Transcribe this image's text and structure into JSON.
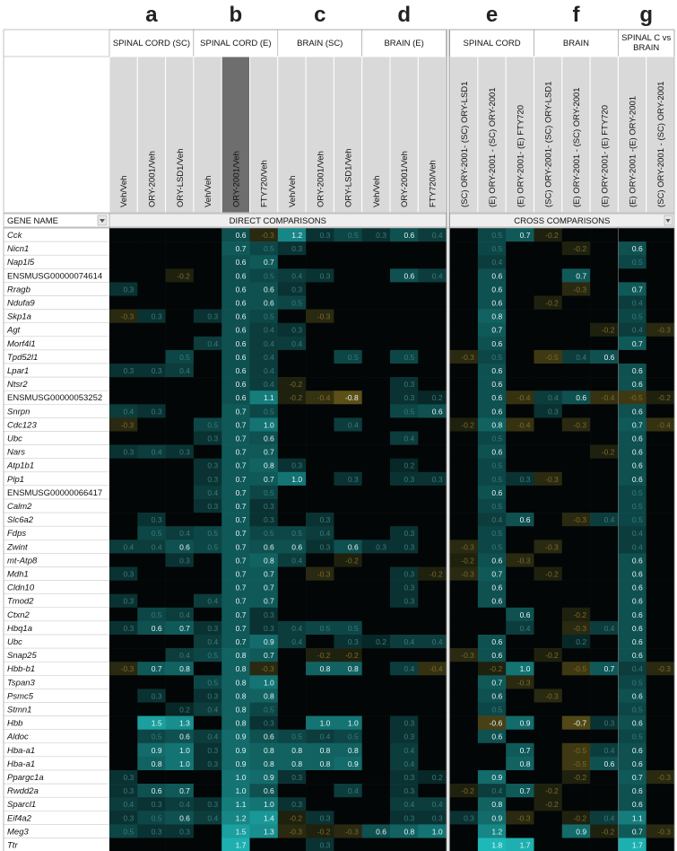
{
  "chart_data": {
    "type": "heatmap",
    "panel_letters": [
      "a",
      "b",
      "c",
      "d",
      "e",
      "f",
      "g"
    ],
    "groups": [
      {
        "label": "SPINAL CORD (SC)",
        "columns": [
          "Veh/Veh",
          "ORY-2001/Veh",
          "ORY-LSD1/Veh"
        ]
      },
      {
        "label": "SPINAL CORD (E)",
        "columns": [
          "Veh/Veh",
          "ORY-2001/Veh",
          "FTY720/Veh"
        ]
      },
      {
        "label": "BRAIN (SC)",
        "columns": [
          "Veh/Veh",
          "ORY-2001/Veh",
          "ORY-LSD1/Veh"
        ]
      },
      {
        "label": "BRAIN (E)",
        "columns": [
          "Veh/Veh",
          "ORY-2001/Veh",
          "FTY720/Veh"
        ]
      },
      {
        "label": "SPINAL CORD",
        "columns": [
          "(SC) ORY-2001- (SC) ORY-LSD1",
          "(E) ORY-2001 - (SC) ORY-2001",
          "(E) ORY-2001- (E) FTY720"
        ]
      },
      {
        "label": "BRAIN",
        "columns": [
          "(SC) ORY-2001- (SC) ORY-LSD1",
          "(E) ORY-2001 - (SC) ORY-2001",
          "(E) ORY-2001- (E) FTY720"
        ]
      },
      {
        "label": "SPINAL C vs BRAIN",
        "columns": [
          "(E) ORY-2001 -(E) ORY-2001",
          "(SC) ORY-2001 - (SC) ORY-2001"
        ]
      }
    ],
    "gene_header": "GENE NAME",
    "section_direct": "DIRECT COMPARISONS",
    "section_cross": "CROSS COMPARISONS",
    "genes": [
      "Cck",
      "Nicn1",
      "Nap1l5",
      "ENSMUSG00000074614",
      "Rragb",
      "Ndufa9",
      "Skp1a",
      "Agt",
      "Morf4l1",
      "Tpd52l1",
      "Lpar1",
      "Ntsr2",
      "ENSMUSG00000053252",
      "Snrpn",
      "Cdc123",
      "Ubc",
      "Nars",
      "Atp1b1",
      "Plp1",
      "ENSMUSG00000066417",
      "Calm2",
      "Slc6a2",
      "Fdps",
      "Zwint",
      "mt-Atp8",
      "Mdh1",
      "Cldn10",
      "Tmod2",
      "Ctxn2",
      "Hbq1a",
      "Ubc",
      "Snap25",
      "Hbb-b1",
      "Tspan3",
      "Psmc5",
      "Stmn1",
      "Hbb",
      "Aldoc",
      "Hba-a1",
      "Hba-a1",
      "Ppargc1a",
      "Rwdd2a",
      "Sparcl1",
      "Eif4a2",
      "Meg3",
      "Ttr"
    ],
    "values": [
      [
        null,
        null,
        null,
        null,
        0.6,
        -0.3,
        1.2,
        0.3,
        0.5,
        0.3,
        0.6,
        0.4,
        null,
        0.5,
        0.7,
        -0.2,
        null,
        null,
        null,
        null
      ],
      [
        null,
        null,
        null,
        null,
        0.7,
        0.5,
        0.3,
        null,
        null,
        null,
        null,
        null,
        null,
        0.5,
        null,
        null,
        -0.2,
        null,
        0.6,
        null
      ],
      [
        null,
        null,
        null,
        null,
        0.6,
        0.7,
        null,
        null,
        null,
        null,
        null,
        null,
        null,
        0.4,
        null,
        null,
        null,
        null,
        0.5,
        null
      ],
      [
        null,
        null,
        -0.2,
        null,
        0.6,
        0.5,
        0.4,
        0.3,
        null,
        null,
        0.6,
        0.4,
        null,
        0.6,
        null,
        null,
        0.7,
        null,
        null,
        null
      ],
      [
        0.3,
        null,
        null,
        null,
        0.6,
        0.6,
        0.3,
        null,
        null,
        null,
        null,
        null,
        null,
        0.6,
        null,
        null,
        -0.3,
        null,
        0.7,
        null
      ],
      [
        null,
        null,
        null,
        null,
        0.6,
        0.6,
        0.5,
        null,
        null,
        null,
        null,
        null,
        null,
        0.6,
        null,
        -0.2,
        null,
        null,
        0.4,
        null
      ],
      [
        -0.3,
        0.3,
        null,
        0.3,
        0.6,
        0.5,
        null,
        -0.3,
        null,
        null,
        null,
        null,
        null,
        0.8,
        null,
        null,
        null,
        null,
        0.5,
        null
      ],
      [
        null,
        null,
        null,
        null,
        0.6,
        0.4,
        0.3,
        null,
        null,
        null,
        null,
        null,
        null,
        0.7,
        null,
        null,
        null,
        -0.2,
        0.4,
        -0.3
      ],
      [
        null,
        null,
        null,
        0.4,
        0.6,
        0.4,
        0.4,
        null,
        null,
        null,
        null,
        null,
        null,
        0.6,
        null,
        null,
        null,
        null,
        0.7,
        null
      ],
      [
        null,
        null,
        0.5,
        null,
        0.6,
        0.4,
        null,
        null,
        0.5,
        null,
        0.5,
        null,
        -0.3,
        0.5,
        null,
        -0.5,
        0.4,
        0.6,
        null,
        null
      ],
      [
        0.3,
        0.3,
        0.4,
        null,
        0.6,
        0.4,
        null,
        null,
        null,
        null,
        null,
        null,
        null,
        0.6,
        null,
        null,
        null,
        null,
        0.6,
        null
      ],
      [
        null,
        null,
        null,
        null,
        0.6,
        0.4,
        -0.2,
        null,
        null,
        null,
        0.3,
        null,
        null,
        0.6,
        null,
        null,
        null,
        null,
        0.6,
        null
      ],
      [
        null,
        null,
        null,
        null,
        0.6,
        1.1,
        -0.2,
        -0.4,
        -0.8,
        null,
        0.3,
        0.2,
        null,
        0.6,
        -0.4,
        0.4,
        0.6,
        -0.4,
        -0.5,
        -0.2
      ],
      [
        0.4,
        0.3,
        null,
        null,
        0.7,
        0.5,
        null,
        null,
        null,
        null,
        0.5,
        0.6,
        null,
        0.6,
        null,
        0.3,
        null,
        null,
        0.6,
        null
      ],
      [
        -0.3,
        null,
        null,
        0.5,
        0.7,
        1.0,
        null,
        null,
        0.4,
        null,
        null,
        null,
        -0.2,
        0.8,
        -0.4,
        null,
        -0.3,
        null,
        0.7,
        -0.4
      ],
      [
        null,
        null,
        null,
        0.3,
        0.7,
        0.6,
        null,
        null,
        null,
        null,
        0.4,
        null,
        null,
        0.5,
        null,
        null,
        null,
        null,
        0.6,
        null
      ],
      [
        0.3,
        0.4,
        0.3,
        null,
        0.7,
        0.7,
        null,
        null,
        null,
        null,
        null,
        null,
        null,
        0.6,
        null,
        null,
        null,
        -0.2,
        0.6,
        null
      ],
      [
        null,
        null,
        null,
        0.3,
        0.7,
        0.8,
        0.3,
        null,
        null,
        null,
        0.2,
        null,
        null,
        0.5,
        null,
        null,
        null,
        null,
        0.6,
        null
      ],
      [
        null,
        null,
        null,
        0.3,
        0.7,
        0.7,
        1.0,
        null,
        0.3,
        null,
        0.3,
        0.3,
        null,
        0.5,
        0.3,
        -0.3,
        null,
        null,
        0.6,
        null
      ],
      [
        null,
        null,
        null,
        0.4,
        0.7,
        0.5,
        null,
        null,
        null,
        null,
        null,
        null,
        null,
        0.6,
        null,
        null,
        null,
        null,
        0.5,
        null
      ],
      [
        null,
        null,
        null,
        0.3,
        0.7,
        0.3,
        null,
        null,
        null,
        null,
        null,
        null,
        null,
        0.5,
        null,
        null,
        null,
        null,
        0.5,
        null
      ],
      [
        null,
        0.3,
        null,
        null,
        0.7,
        0.3,
        null,
        0.3,
        null,
        null,
        null,
        null,
        null,
        0.4,
        0.6,
        null,
        -0.3,
        0.4,
        0.5,
        null
      ],
      [
        null,
        0.5,
        0.4,
        0.5,
        0.7,
        0.5,
        0.5,
        0.4,
        null,
        null,
        0.3,
        null,
        null,
        0.5,
        null,
        null,
        null,
        null,
        0.4,
        null
      ],
      [
        0.4,
        0.4,
        0.6,
        0.5,
        0.7,
        0.6,
        0.6,
        0.3,
        0.6,
        0.3,
        0.3,
        null,
        -0.3,
        0.5,
        null,
        -0.3,
        null,
        null,
        0.4,
        null
      ],
      [
        null,
        null,
        0.3,
        null,
        0.7,
        0.8,
        0.4,
        null,
        -0.2,
        null,
        null,
        null,
        -0.2,
        0.6,
        -0.3,
        null,
        null,
        null,
        0.6,
        null
      ],
      [
        0.3,
        null,
        null,
        null,
        0.7,
        0.7,
        null,
        -0.3,
        null,
        null,
        0.3,
        -0.2,
        -0.3,
        0.7,
        null,
        -0.2,
        null,
        null,
        0.6,
        null
      ],
      [
        null,
        null,
        null,
        null,
        0.7,
        0.7,
        null,
        null,
        null,
        null,
        0.3,
        null,
        null,
        0.6,
        null,
        null,
        null,
        null,
        0.6,
        null
      ],
      [
        0.3,
        null,
        null,
        0.4,
        0.7,
        0.7,
        null,
        null,
        null,
        null,
        0.3,
        null,
        null,
        0.6,
        null,
        null,
        null,
        null,
        0.6,
        null
      ],
      [
        null,
        0.5,
        0.4,
        null,
        0.7,
        0.3,
        null,
        null,
        null,
        null,
        null,
        null,
        null,
        null,
        0.6,
        null,
        -0.2,
        null,
        0.6,
        null
      ],
      [
        0.3,
        0.6,
        0.7,
        0.3,
        0.7,
        0.3,
        0.4,
        0.5,
        0.5,
        null,
        null,
        null,
        null,
        null,
        0.4,
        null,
        -0.3,
        0.4,
        0.6,
        null
      ],
      [
        null,
        null,
        null,
        0.4,
        0.7,
        0.9,
        0.4,
        null,
        0.3,
        0.2,
        0.4,
        0.4,
        null,
        0.6,
        null,
        null,
        0.2,
        null,
        0.6,
        null
      ],
      [
        null,
        null,
        0.4,
        0.5,
        0.8,
        0.7,
        null,
        -0.2,
        -0.2,
        null,
        null,
        null,
        -0.3,
        0.6,
        null,
        -0.2,
        null,
        null,
        0.6,
        null
      ],
      [
        -0.3,
        0.7,
        0.8,
        null,
        0.8,
        -0.3,
        null,
        0.8,
        0.8,
        null,
        0.4,
        -0.4,
        null,
        -0.2,
        1.0,
        null,
        -0.5,
        0.7,
        0.4,
        -0.3
      ],
      [
        null,
        null,
        null,
        0.5,
        0.8,
        1.0,
        null,
        null,
        null,
        null,
        null,
        null,
        null,
        0.7,
        -0.3,
        null,
        null,
        null,
        0.5,
        null
      ],
      [
        null,
        0.3,
        null,
        0.3,
        0.8,
        0.8,
        null,
        null,
        null,
        null,
        null,
        null,
        null,
        0.6,
        null,
        -0.3,
        null,
        null,
        0.6,
        null
      ],
      [
        null,
        null,
        0.2,
        0.4,
        0.8,
        0.5,
        null,
        null,
        null,
        null,
        null,
        null,
        null,
        0.5,
        null,
        null,
        null,
        null,
        0.5,
        null
      ],
      [
        null,
        1.5,
        1.3,
        null,
        0.8,
        0.3,
        null,
        1.0,
        1.0,
        null,
        0.3,
        null,
        null,
        -0.6,
        0.9,
        null,
        -0.7,
        0.3,
        0.6,
        null
      ],
      [
        null,
        0.5,
        0.6,
        0.4,
        0.9,
        0.6,
        0.5,
        0.4,
        0.5,
        null,
        0.3,
        null,
        null,
        0.6,
        null,
        null,
        null,
        null,
        0.5,
        null
      ],
      [
        null,
        0.9,
        1.0,
        0.3,
        0.9,
        0.8,
        0.8,
        0.8,
        0.8,
        null,
        0.4,
        null,
        null,
        null,
        0.7,
        null,
        -0.5,
        0.4,
        0.6,
        null
      ],
      [
        null,
        0.8,
        1.0,
        0.3,
        0.9,
        0.8,
        0.8,
        0.8,
        0.9,
        null,
        0.4,
        null,
        null,
        null,
        0.8,
        null,
        -0.5,
        0.6,
        0.6,
        null
      ],
      [
        0.3,
        null,
        null,
        null,
        1.0,
        0.9,
        0.3,
        null,
        null,
        null,
        0.3,
        0.2,
        null,
        0.9,
        null,
        null,
        -0.2,
        null,
        0.7,
        -0.3
      ],
      [
        0.3,
        0.6,
        0.7,
        null,
        1.0,
        0.6,
        null,
        null,
        0.4,
        null,
        0.3,
        null,
        -0.2,
        0.4,
        0.7,
        -0.2,
        null,
        null,
        0.6,
        null
      ],
      [
        0.4,
        0.3,
        0.4,
        0.3,
        1.1,
        1.0,
        0.3,
        null,
        null,
        null,
        0.4,
        0.4,
        null,
        0.8,
        null,
        -0.2,
        null,
        null,
        0.6,
        null
      ],
      [
        0.3,
        0.5,
        0.6,
        0.4,
        1.2,
        1.4,
        -0.2,
        0.3,
        null,
        null,
        0.3,
        0.3,
        0.3,
        0.9,
        -0.3,
        null,
        -0.2,
        0.4,
        1.1,
        null
      ],
      [
        0.5,
        0.3,
        0.3,
        null,
        1.5,
        1.3,
        -0.3,
        -0.2,
        -0.3,
        0.6,
        0.8,
        1.0,
        null,
        1.2,
        null,
        null,
        0.9,
        -0.2,
        0.7,
        -0.3
      ],
      [
        null,
        null,
        null,
        null,
        1.7,
        null,
        null,
        0.3,
        null,
        null,
        null,
        null,
        null,
        1.8,
        1.7,
        null,
        null,
        null,
        1.7,
        null
      ]
    ],
    "colors": {
      "positive": "#1fb8b8",
      "negative": "#b39322",
      "zero": "#020606",
      "highlight_header": "#6e6e6e",
      "header_band": "#d9d9d9"
    },
    "dropdown_icon": "chevron-down-icon"
  }
}
